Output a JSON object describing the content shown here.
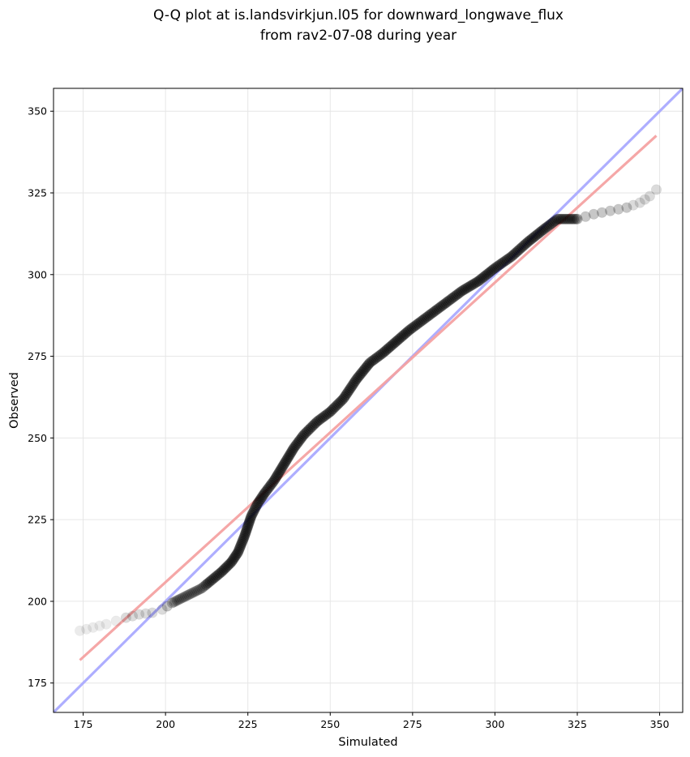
{
  "chart_data": {
    "type": "scatter",
    "title_lines": [
      "Q-Q plot at is.landsvirkjun.l05 for downward_longwave_flux",
      "from rav2-07-08 during year"
    ],
    "xlabel": "Simulated",
    "ylabel": "Observed",
    "xlim": [
      166,
      357
    ],
    "ylim": [
      166,
      357
    ],
    "xticks": [
      175,
      200,
      225,
      250,
      275,
      300,
      325,
      350
    ],
    "yticks": [
      175,
      200,
      225,
      250,
      275,
      300,
      325,
      350
    ],
    "grid": true,
    "quantile_curve": [
      [
        174,
        191
      ],
      [
        178,
        192
      ],
      [
        182,
        193
      ],
      [
        185,
        194
      ],
      [
        188,
        195
      ],
      [
        192,
        196
      ],
      [
        196,
        196.5
      ],
      [
        199,
        197.5
      ],
      [
        202,
        199.5
      ],
      [
        205,
        201
      ],
      [
        208,
        202.5
      ],
      [
        211,
        204
      ],
      [
        214,
        206.5
      ],
      [
        217,
        209
      ],
      [
        220,
        212
      ],
      [
        222,
        215
      ],
      [
        224,
        220
      ],
      [
        226,
        226
      ],
      [
        228,
        230
      ],
      [
        230,
        233
      ],
      [
        233,
        237
      ],
      [
        236,
        242
      ],
      [
        239,
        247
      ],
      [
        242,
        251
      ],
      [
        246,
        255
      ],
      [
        250,
        258
      ],
      [
        254,
        262
      ],
      [
        258,
        268
      ],
      [
        262,
        273
      ],
      [
        266,
        276
      ],
      [
        270,
        279.5
      ],
      [
        274,
        283
      ],
      [
        278,
        286
      ],
      [
        282,
        289
      ],
      [
        286,
        292
      ],
      [
        290,
        295
      ],
      [
        295,
        298
      ],
      [
        300,
        302
      ],
      [
        305,
        305.5
      ],
      [
        310,
        310
      ],
      [
        315,
        314
      ],
      [
        319,
        317
      ],
      [
        325,
        317
      ],
      [
        330,
        318.5
      ],
      [
        335,
        319.5
      ],
      [
        340,
        320.5
      ],
      [
        344,
        322
      ],
      [
        347,
        324
      ],
      [
        349,
        326
      ]
    ],
    "reference_lines": [
      {
        "name": "1:1",
        "color": "#aaaaff",
        "points": [
          [
            166,
            166
          ],
          [
            357,
            357
          ]
        ]
      },
      {
        "name": "fit",
        "color": "#f5a3a3",
        "points": [
          [
            174,
            182
          ],
          [
            349,
            342.5
          ]
        ]
      }
    ],
    "colors": {
      "points": "#000000",
      "one_to_one": "#aaaaff",
      "fit": "#f5a3a3",
      "grid": "#e6e6e6"
    }
  }
}
